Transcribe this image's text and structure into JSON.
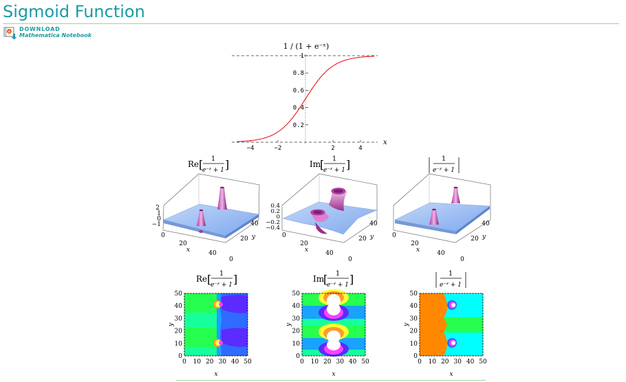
{
  "page": {
    "title": "Sigmoid Function"
  },
  "download": {
    "label": "DOWNLOAD",
    "sublabel": "Mathematica Notebook",
    "icon": "notebook-download-icon"
  },
  "plot": {
    "title": "1 / (1 + e⁻ˣ)",
    "xlabel": "x",
    "x_ticks": [
      "-4",
      "-2",
      "2",
      "4"
    ],
    "y_ticks": [
      "0.2",
      "0.4",
      "0.6",
      "0.8",
      "1"
    ]
  },
  "surfaces": {
    "re_label": "Re",
    "im_label": "Im",
    "frac_num": "1",
    "frac_den": "e⁻ᶻ + 1",
    "x_label": "x",
    "y_label": "y",
    "re_z_ticks": [
      "2",
      "1",
      "0",
      "−1"
    ],
    "im_z_ticks": [
      "0.4",
      "0.2",
      "0",
      "−0.2",
      "−0.4"
    ],
    "abs_z_ticks": [],
    "x_ticks": [
      "0",
      "20",
      "40"
    ],
    "y_ticks": [
      "0",
      "20",
      "40"
    ]
  },
  "contours": {
    "x_ticks": [
      "0",
      "10",
      "20",
      "30",
      "40",
      "50"
    ],
    "y_ticks": [
      "0",
      "10",
      "20",
      "30",
      "40",
      "50"
    ],
    "x_label": "x",
    "y_label": "y"
  },
  "chart_data": [
    {
      "type": "line",
      "title": "1 / (1 + e⁻ˣ)",
      "xlabel": "x",
      "ylabel": "",
      "xlim": [
        -5,
        5
      ],
      "ylim": [
        0,
        1
      ],
      "series": [
        {
          "x": [
            -5,
            -4,
            -3,
            -2,
            -1,
            0,
            1,
            2,
            3,
            4,
            5
          ],
          "values": [
            0.0067,
            0.018,
            0.047,
            0.119,
            0.269,
            0.5,
            0.731,
            0.881,
            0.953,
            0.982,
            0.9933
          ]
        }
      ],
      "colors": {
        "curve": "#e8000b",
        "asymptote": "#333333"
      }
    }
  ],
  "colors": {
    "accent": "#1c9aa4",
    "rule": "#9ed39e"
  }
}
